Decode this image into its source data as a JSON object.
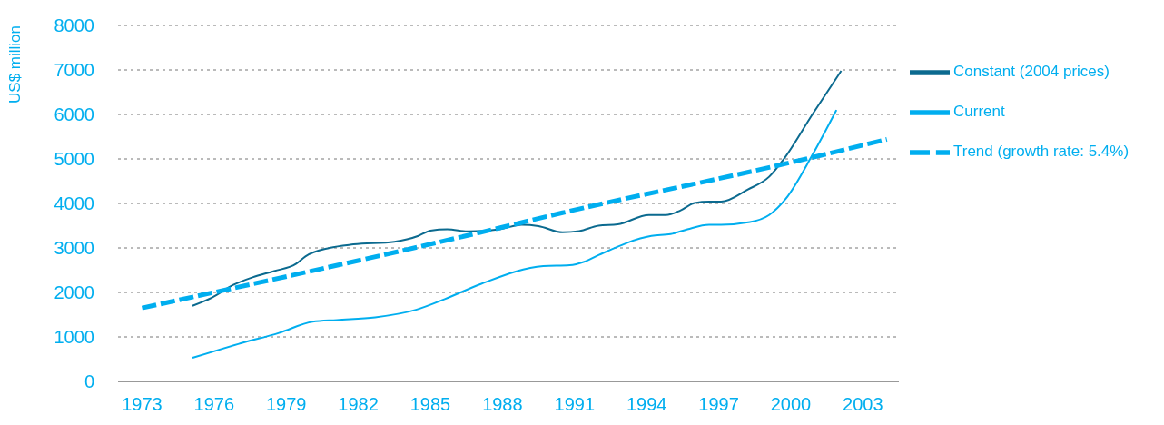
{
  "chart_data": {
    "type": "line",
    "ylabel": "US$ million",
    "xlim": [
      1972,
      2004.5
    ],
    "xticks": [
      1973,
      1976,
      1979,
      1982,
      1985,
      1988,
      1991,
      1994,
      1997,
      2000,
      2003
    ],
    "ylim": [
      0,
      8000
    ],
    "yticks": [
      0,
      1000,
      2000,
      3000,
      4000,
      5000,
      6000,
      7000,
      8000
    ],
    "grid": "y",
    "legend": "right",
    "series": [
      {
        "name": "Constant (2004 prices)",
        "color": "#0b6a8f",
        "line_style": "solid",
        "x": [
          1975.1,
          1975.9,
          1976.8,
          1977.6,
          1978.5,
          1979.4,
          1979.8,
          1980.8,
          1981.8,
          1983.5,
          1984.5,
          1985.0,
          1985.7,
          1986.6,
          1987.9,
          1988.8,
          1989.5,
          1990.5,
          1991.2,
          1992.0,
          1992.8,
          1994.1,
          1994.8,
          1995.4,
          1996.0,
          1996.6,
          1997.1,
          1998.2,
          1999.1,
          1999.7,
          2000.9,
          2002.1
        ],
        "values": [
          1700,
          1880,
          2170,
          2340,
          2480,
          2640,
          2810,
          3000,
          3080,
          3140,
          3270,
          3390,
          3420,
          3370,
          3420,
          3520,
          3490,
          3350,
          3380,
          3500,
          3530,
          3740,
          3740,
          3840,
          4010,
          4040,
          4040,
          4310,
          4600,
          4990,
          6000,
          6980
        ]
      },
      {
        "name": "Trend (growth rate: 5.4%)",
        "color": "#00aeef",
        "line_style": "dashed",
        "x": [
          1973.0,
          1987.1,
          1990.5,
          2000.0,
          2004.0
        ],
        "values": [
          1650,
          3350,
          3790,
          4920,
          5440
        ]
      },
      {
        "name": "Current",
        "color": "#00aeef",
        "line_style": "solid",
        "x": [
          1975.1,
          1977.0,
          1978.7,
          1980.1,
          1981.1,
          1982.7,
          1984.4,
          1985.6,
          1987.1,
          1989.7,
          1990.8,
          1991.4,
          1992.0,
          1994.2,
          1995.0,
          1995.7,
          1996.6,
          1997.1,
          1998.3,
          1999.1,
          1999.8,
          2000.9,
          2001.9
        ],
        "values": [
          530,
          840,
          1090,
          1340,
          1380,
          1440,
          1610,
          1850,
          2190,
          2590,
          2610,
          2690,
          2840,
          3270,
          3310,
          3420,
          3520,
          3520,
          3580,
          3740,
          4110,
          5090,
          6100
        ]
      }
    ]
  }
}
